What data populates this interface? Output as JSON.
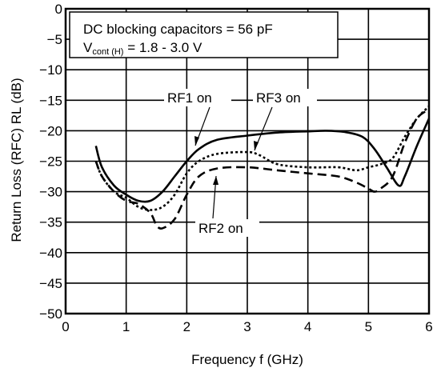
{
  "chart_data": {
    "type": "line",
    "xlabel": "Frequency  f (GHz)",
    "ylabel": "Return Loss (RFC)  RL (dB)",
    "xlim": [
      0,
      6
    ],
    "ylim": [
      -50,
      0
    ],
    "xticks": [
      "0",
      "1",
      "2",
      "3",
      "4",
      "5",
      "6"
    ],
    "yticks": [
      "0",
      "−5",
      "−10",
      "−15",
      "−20",
      "−25",
      "−30",
      "−35",
      "−40",
      "−45",
      "−50"
    ],
    "grid": true,
    "info_box": {
      "line1": "DC blocking capacitors = 56 pF",
      "line2_main": "V",
      "line2_sub": "cont (H)",
      "line2_rest": " = 1.8 - 3.0 V"
    },
    "series": [
      {
        "name": "RF1 on",
        "style": "solid",
        "x": [
          0.5,
          0.6,
          0.8,
          1.0,
          1.2,
          1.4,
          1.6,
          1.8,
          2.0,
          2.2,
          2.5,
          3.0,
          3.5,
          4.0,
          4.3,
          4.6,
          4.9,
          5.1,
          5.3,
          5.5,
          5.6,
          5.8,
          6.0
        ],
        "y": [
          -22.5,
          -26,
          -29,
          -30.5,
          -31.5,
          -31.5,
          -30,
          -27.5,
          -25,
          -23,
          -21.5,
          -20.8,
          -20.3,
          -20.1,
          -20,
          -20.2,
          -21,
          -23,
          -26,
          -29,
          -27.5,
          -22.5,
          -18
        ]
      },
      {
        "name": "RF3 on",
        "style": "dotted",
        "x": [
          0.5,
          0.6,
          0.8,
          1.0,
          1.2,
          1.4,
          1.6,
          1.8,
          2.0,
          2.2,
          2.5,
          3.0,
          3.2,
          3.5,
          4.0,
          4.5,
          4.8,
          5.0,
          5.2,
          5.4,
          5.6,
          5.8,
          6.0
        ],
        "y": [
          -25,
          -27.5,
          -30,
          -31,
          -32.5,
          -33,
          -32.5,
          -30.5,
          -27,
          -25,
          -23.8,
          -23.5,
          -24,
          -25.5,
          -26,
          -26,
          -26.5,
          -26,
          -25.5,
          -24.5,
          -21,
          -18,
          -16
        ]
      },
      {
        "name": "RF2 on",
        "style": "dashed",
        "x": [
          0.5,
          0.6,
          0.8,
          1.0,
          1.2,
          1.4,
          1.5,
          1.6,
          1.8,
          2.0,
          2.2,
          2.5,
          3.0,
          3.5,
          4.0,
          4.5,
          4.8,
          5.0,
          5.1,
          5.2,
          5.4,
          5.6,
          5.8,
          6.0
        ],
        "y": [
          -25,
          -27.5,
          -30,
          -31.5,
          -32,
          -33.5,
          -35.5,
          -36,
          -34.5,
          -30.5,
          -27.5,
          -26.2,
          -26,
          -26.5,
          -27,
          -27.5,
          -28.5,
          -29.5,
          -30,
          -29.5,
          -27.5,
          -22,
          -18,
          -16.5
        ]
      }
    ],
    "annotations": [
      {
        "text": "RF1 on",
        "series": "RF1 on"
      },
      {
        "text": "RF3 on",
        "series": "RF3 on"
      },
      {
        "text": "RF2 on",
        "series": "RF2 on"
      }
    ]
  }
}
